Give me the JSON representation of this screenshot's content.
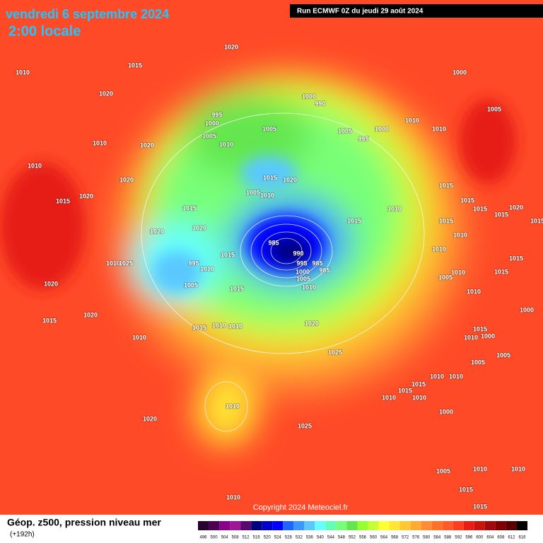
{
  "header": {
    "title": "vendredi 6 septembre 2024",
    "time": "2:00 locale",
    "run": "Run ECMWF 0Z du jeudi 29 août 2024"
  },
  "copyright": "Copyright 2024 Meteociel.fr",
  "footer": {
    "label": "Géop. z500, pression niveau mer",
    "lead": "(+192h)"
  },
  "isobar_labels": [
    "1020",
    "1015",
    "1010",
    "1020",
    "1000",
    "1000",
    "990",
    "995",
    "1000",
    "1005",
    "1005",
    "1005",
    "1000",
    "995",
    "1010",
    "1010",
    "1005",
    "1010",
    "1020",
    "1010",
    "1010",
    "1020",
    "1015",
    "1020",
    "1005",
    "1010",
    "1015",
    "1020",
    "1015",
    "1015",
    "1010",
    "1015",
    "1015",
    "1015",
    "1020",
    "1015",
    "1020",
    "1020",
    "1015",
    "985",
    "1010",
    "1015",
    "990",
    "1010",
    "1015",
    "1010",
    "1025",
    "995",
    "985",
    "995",
    "1000",
    "985",
    "1015",
    "1010",
    "1010",
    "1005",
    "1015",
    "1005",
    "1020",
    "1005",
    "1015",
    "1010",
    "1010",
    "1000",
    "1020",
    "1015",
    "1020",
    "1015",
    "1010",
    "1010",
    "1015",
    "1010",
    "1000",
    "1010",
    "1025",
    "1005",
    "1005",
    "1010",
    "1010",
    "1015",
    "1015",
    "1010",
    "1010",
    "1010",
    "1000",
    "1020",
    "1025",
    "1005",
    "1010",
    "1010",
    "1015",
    "1010",
    "1015"
  ],
  "legend": {
    "values": [
      496,
      500,
      504,
      508,
      512,
      516,
      520,
      524,
      528,
      532,
      536,
      540,
      544,
      548,
      552,
      556,
      560,
      564,
      568,
      572,
      576,
      580,
      584,
      588,
      592,
      596,
      600,
      604,
      608,
      612,
      616
    ],
    "colors": [
      "#2a0030",
      "#4b0050",
      "#8b008b",
      "#a01496",
      "#5a0a6e",
      "#000080",
      "#0000c8",
      "#0000ff",
      "#1e64ff",
      "#3c96ff",
      "#5ac8ff",
      "#64ffff",
      "#64ffb4",
      "#78ff78",
      "#64e650",
      "#96ff32",
      "#c8ff32",
      "#ffff32",
      "#ffe632",
      "#ffc832",
      "#ffaa32",
      "#ff8c32",
      "#ff7028",
      "#ff5a28",
      "#ff3c1e",
      "#e61e14",
      "#c8140a",
      "#a00a0a",
      "#800000",
      "#5a0000",
      "#000000"
    ]
  }
}
